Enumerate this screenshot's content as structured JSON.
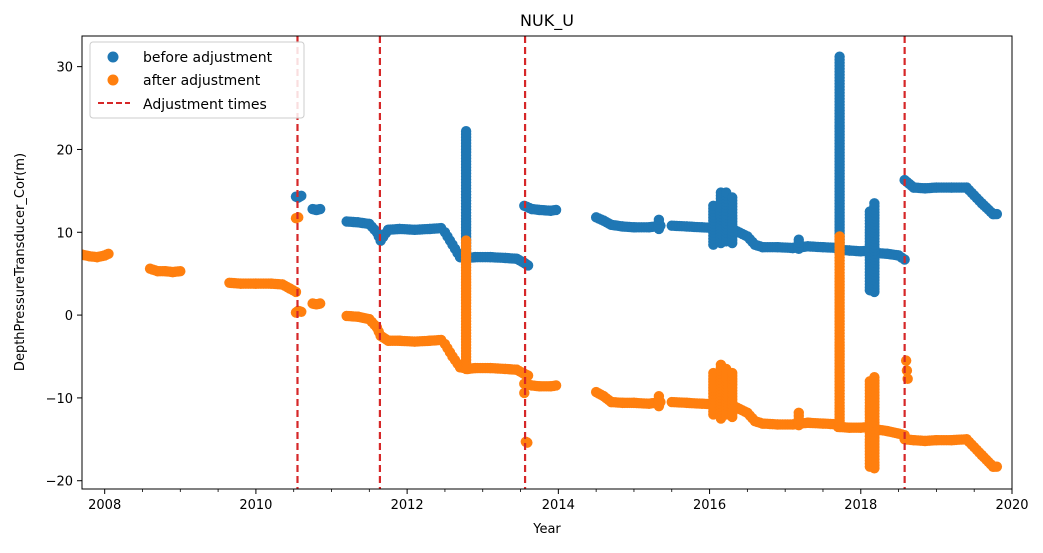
{
  "chart_data": {
    "type": "scatter",
    "title": "NUK_U",
    "xlabel": "Year",
    "ylabel": "DepthPressureTransducer_Cor(m)",
    "xlim": [
      2007.7,
      2020.0
    ],
    "ylim": [
      -21,
      33.7
    ],
    "x_ticks": [
      2008,
      2010,
      2012,
      2014,
      2016,
      2018,
      2020
    ],
    "y_ticks": [
      -20,
      -10,
      0,
      10,
      20,
      30
    ],
    "legend": {
      "placement": "top-left"
    },
    "grid": false,
    "series": [
      {
        "name": "before adjustment",
        "color": "#1f77b4",
        "segments": [
          {
            "x": [
              2010.53,
              2010.56,
              2010.6
            ],
            "y": [
              14.3,
              14.2,
              14.4
            ]
          },
          {
            "x": [
              2010.75,
              2010.8,
              2010.85
            ],
            "y": [
              12.8,
              12.7,
              12.8
            ]
          },
          {
            "x": [
              2011.2,
              2011.35,
              2011.5,
              2011.6,
              2011.65,
              2011.75,
              2011.9,
              2012.1,
              2012.3,
              2012.45
            ],
            "y": [
              11.3,
              11.2,
              11.0,
              10.0,
              9.0,
              10.3,
              10.4,
              10.3,
              10.4,
              10.5
            ]
          },
          {
            "x": [
              2012.5,
              2012.6,
              2012.7,
              2012.8,
              2012.9,
              2013.1,
              2013.3,
              2013.45,
              2013.55,
              2013.6
            ],
            "y": [
              10.0,
              8.5,
              7.0,
              6.9,
              7.0,
              7.0,
              6.9,
              6.8,
              6.3,
              6.0
            ]
          },
          {
            "x": [
              2013.55,
              2013.65,
              2013.75,
              2013.9,
              2013.97
            ],
            "y": [
              13.2,
              12.8,
              12.7,
              12.6,
              12.7
            ]
          },
          {
            "x": [
              2014.5,
              2014.6,
              2014.7,
              2014.85,
              2015.0,
              2015.2,
              2015.35
            ],
            "y": [
              11.8,
              11.4,
              10.9,
              10.7,
              10.6,
              10.6,
              10.8
            ]
          },
          {
            "x": [
              2015.5,
              2015.7,
              2015.9,
              2016.1,
              2016.3,
              2016.5,
              2016.6,
              2016.7,
              2016.9,
              2017.1,
              2017.3,
              2017.5,
              2017.7
            ],
            "y": [
              10.8,
              10.7,
              10.6,
              10.5,
              10.4,
              9.5,
              8.5,
              8.2,
              8.2,
              8.1,
              8.3,
              8.2,
              8.1
            ]
          },
          {
            "x": [
              2017.7,
              2017.85,
              2018.0,
              2018.1,
              2018.2,
              2018.35,
              2018.5,
              2018.58
            ],
            "y": [
              7.9,
              7.8,
              7.7,
              7.8,
              7.5,
              7.4,
              7.2,
              6.7
            ]
          },
          {
            "x": [
              2018.58,
              2018.7,
              2018.85,
              2019.0,
              2019.2,
              2019.4,
              2019.6,
              2019.75,
              2019.8
            ],
            "y": [
              16.3,
              15.4,
              15.3,
              15.4,
              15.4,
              15.4,
              13.5,
              12.2,
              12.2
            ]
          }
        ],
        "spikes": [
          {
            "x": 2012.78,
            "y": [
              6.9,
              22.2
            ]
          },
          {
            "x": 2017.72,
            "y": [
              8.0,
              31.2
            ]
          },
          {
            "x": 2018.12,
            "y": [
              3.0,
              12.5
            ]
          },
          {
            "x": 2018.18,
            "y": [
              2.8,
              13.5
            ]
          },
          {
            "x": 2016.05,
            "y": [
              8.5,
              13.2
            ]
          },
          {
            "x": 2016.15,
            "y": [
              8.7,
              14.8
            ]
          },
          {
            "x": 2016.22,
            "y": [
              8.9,
              14.8
            ]
          },
          {
            "x": 2016.3,
            "y": [
              8.7,
              14.2
            ]
          },
          {
            "x": 2015.33,
            "y": [
              10.4,
              11.5
            ]
          },
          {
            "x": 2017.18,
            "y": [
              8.0,
              9.1
            ]
          }
        ]
      },
      {
        "name": "after adjustment",
        "color": "#ff7f0e",
        "segments": [
          {
            "x": [
              2007.7,
              2007.8,
              2007.9,
              2008.0,
              2008.05
            ],
            "y": [
              7.3,
              7.1,
              7.0,
              7.2,
              7.4
            ]
          },
          {
            "x": [
              2008.6,
              2008.7,
              2008.8,
              2008.9,
              2009.0
            ],
            "y": [
              5.6,
              5.3,
              5.3,
              5.2,
              5.3
            ]
          },
          {
            "x": [
              2009.65,
              2009.8,
              2010.0,
              2010.2,
              2010.35,
              2010.45,
              2010.53
            ],
            "y": [
              3.9,
              3.8,
              3.8,
              3.8,
              3.7,
              3.2,
              2.8
            ]
          },
          {
            "x": [
              2010.53,
              2010.56,
              2010.6
            ],
            "y": [
              0.3,
              0.5,
              0.4
            ]
          },
          {
            "x": [
              2010.75,
              2010.8,
              2010.85
            ],
            "y": [
              1.4,
              1.3,
              1.4
            ]
          },
          {
            "x": [
              2011.2,
              2011.35,
              2011.5,
              2011.6,
              2011.65,
              2011.75,
              2011.9,
              2012.1,
              2012.3,
              2012.45
            ],
            "y": [
              -0.1,
              -0.2,
              -0.5,
              -1.5,
              -2.5,
              -3.1,
              -3.1,
              -3.2,
              -3.1,
              -3.0
            ]
          },
          {
            "x": [
              2012.5,
              2012.6,
              2012.7,
              2012.8,
              2012.9,
              2013.1,
              2013.3,
              2013.45,
              2013.55,
              2013.6
            ],
            "y": [
              -3.5,
              -5.0,
              -6.3,
              -6.5,
              -6.4,
              -6.4,
              -6.5,
              -6.6,
              -7.1,
              -7.3
            ]
          },
          {
            "x": [
              2013.55,
              2013.65,
              2013.75,
              2013.9,
              2013.97
            ],
            "y": [
              -8.3,
              -8.5,
              -8.6,
              -8.6,
              -8.5
            ]
          },
          {
            "x": [
              2014.5,
              2014.6,
              2014.7,
              2014.85,
              2015.0,
              2015.2,
              2015.35
            ],
            "y": [
              -9.3,
              -9.8,
              -10.5,
              -10.6,
              -10.6,
              -10.7,
              -10.5
            ]
          },
          {
            "x": [
              2015.5,
              2015.7,
              2015.9,
              2016.1,
              2016.3,
              2016.5,
              2016.6,
              2016.7,
              2016.9,
              2017.1,
              2017.3,
              2017.5,
              2017.7
            ],
            "y": [
              -10.5,
              -10.6,
              -10.7,
              -10.8,
              -10.9,
              -11.8,
              -12.8,
              -13.1,
              -13.2,
              -13.2,
              -13.0,
              -13.1,
              -13.2
            ]
          },
          {
            "x": [
              2017.7,
              2017.85,
              2018.0,
              2018.1,
              2018.2,
              2018.35,
              2018.5,
              2018.58
            ],
            "y": [
              -13.5,
              -13.6,
              -13.6,
              -13.5,
              -13.8,
              -14.0,
              -14.3,
              -14.5
            ]
          },
          {
            "x": [
              2018.58,
              2018.7,
              2018.85,
              2019.0,
              2019.2,
              2019.4,
              2019.6,
              2019.75,
              2019.8
            ],
            "y": [
              -15.0,
              -15.1,
              -15.2,
              -15.1,
              -15.1,
              -15.0,
              -16.9,
              -18.3,
              -18.3
            ]
          }
        ],
        "spikes": [
          {
            "x": 2012.78,
            "y": [
              -6.5,
              9.0
            ]
          },
          {
            "x": 2017.72,
            "y": [
              -13.5,
              9.5
            ]
          },
          {
            "x": 2018.12,
            "y": [
              -18.3,
              -8.0
            ]
          },
          {
            "x": 2018.18,
            "y": [
              -18.5,
              -7.5
            ]
          },
          {
            "x": 2016.05,
            "y": [
              -12.0,
              -7.0
            ]
          },
          {
            "x": 2016.15,
            "y": [
              -12.5,
              -6.0
            ]
          },
          {
            "x": 2016.22,
            "y": [
              -12.0,
              -6.5
            ]
          },
          {
            "x": 2016.3,
            "y": [
              -12.3,
              -7.0
            ]
          },
          {
            "x": 2015.33,
            "y": [
              -11.0,
              -9.8
            ]
          },
          {
            "x": 2017.18,
            "y": [
              -13.3,
              -11.8
            ]
          }
        ],
        "points": [
          {
            "x": 2010.53,
            "y": 11.7
          },
          {
            "x": 2010.56,
            "y": 11.8
          },
          {
            "x": 2013.55,
            "y": -9.4
          },
          {
            "x": 2013.57,
            "y": -15.3
          },
          {
            "x": 2013.59,
            "y": -15.4
          },
          {
            "x": 2018.6,
            "y": -5.5
          },
          {
            "x": 2018.61,
            "y": -6.7
          },
          {
            "x": 2018.62,
            "y": -7.7
          }
        ]
      }
    ],
    "reference_lines": {
      "name": "Adjustment times",
      "color": "#d62728",
      "x": [
        2010.55,
        2011.64,
        2013.56,
        2018.58
      ]
    }
  }
}
